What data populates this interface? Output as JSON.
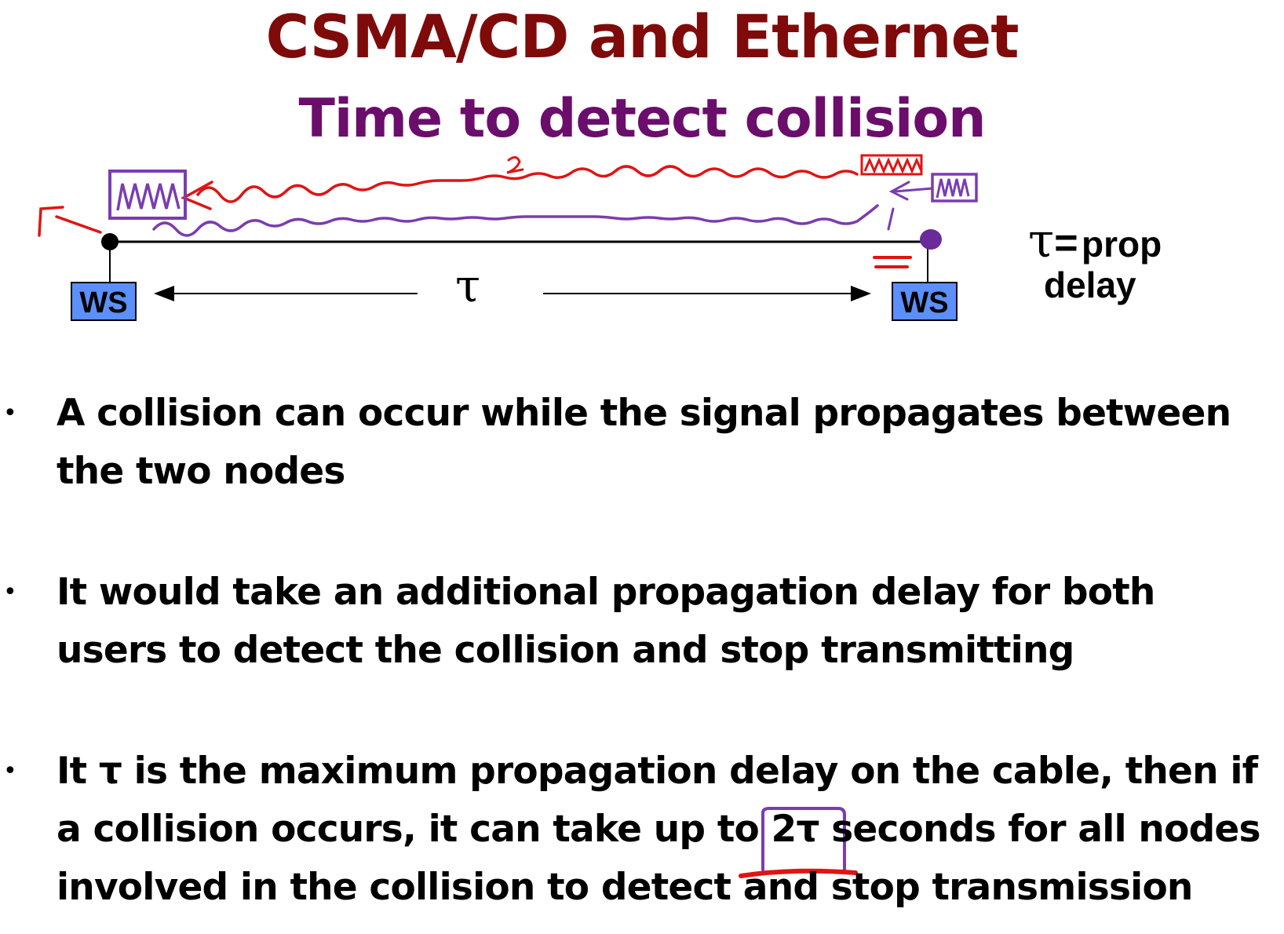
{
  "slide": {
    "title": "CSMA/CD and Ethernet",
    "subtitle": "Time to detect collision"
  },
  "diagram": {
    "left_station": "WS",
    "right_station": "WS",
    "tau_symbol": "τ",
    "annotation": {
      "tau": "τ",
      "equals": "=",
      "line1": "prop",
      "line2": "delay"
    },
    "colors": {
      "station_fill": "#5b8ff9",
      "red_ink": "#e01414",
      "purple_ink": "#7a3db0"
    }
  },
  "bullets": [
    {
      "bullet": "•",
      "line1": "A collision can occur while the signal propagates between",
      "line2": "the two nodes"
    },
    {
      "bullet": "•",
      "line1": "It would take an additional propagation delay for both",
      "line2": "users to detect the collision and stop transmitting"
    },
    {
      "bullet": "•",
      "line1": "It τ is the maximum propagation delay on the cable, then if",
      "line2": "a collision occurs, it can take up to 2τ seconds for all nodes",
      "line3": "involved in the collision to detect and stop transmission"
    }
  ]
}
